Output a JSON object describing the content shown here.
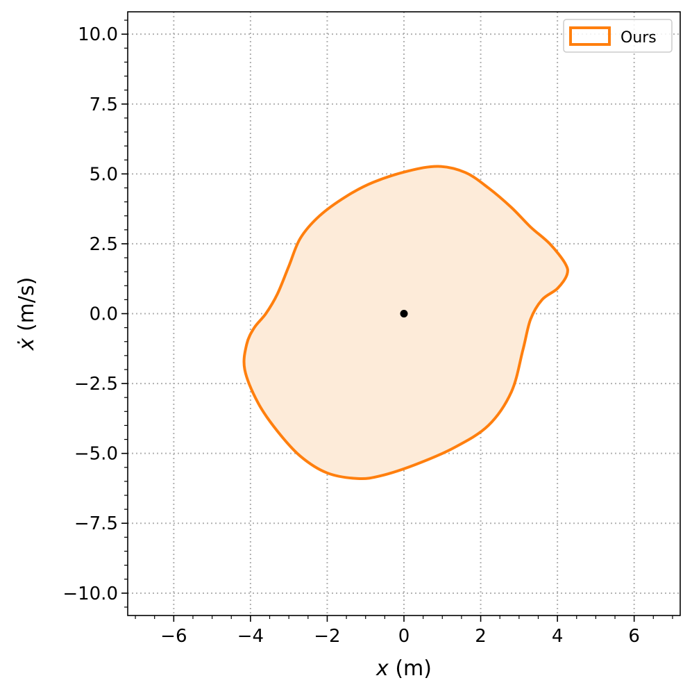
{
  "chart_data": {
    "type": "area",
    "title": "",
    "xlabel_var": "x",
    "xlabel_unit": " (m)",
    "ylabel_var": "ẋ",
    "ylabel_unit": " (m/s)",
    "xlim": [
      -7.2,
      7.2
    ],
    "ylim": [
      -10.8,
      10.8
    ],
    "x_ticks": [
      -6,
      -4,
      -2,
      0,
      2,
      4,
      6
    ],
    "y_ticks": [
      10.0,
      7.5,
      5.0,
      2.5,
      0.0,
      -2.5,
      -5.0,
      -7.5,
      -10.0
    ],
    "x_tick_labels": [
      "−6",
      "−4",
      "−2",
      "0",
      "2",
      "4",
      "6"
    ],
    "y_tick_labels": [
      "10.0",
      "7.5",
      "5.0",
      "2.5",
      "0.0",
      "−2.5",
      "−5.0",
      "−7.5",
      "−10.0"
    ],
    "grid": true,
    "legend_position": "top-right",
    "series": [
      {
        "name": "Ours",
        "color": "#ff7f0e",
        "fill_color": "#fdebd9",
        "closed": true,
        "points": [
          [
            0.9,
            5.27
          ],
          [
            1.6,
            5.05
          ],
          [
            2.2,
            4.5
          ],
          [
            2.8,
            3.8
          ],
          [
            3.3,
            3.1
          ],
          [
            3.8,
            2.5
          ],
          [
            4.2,
            1.8
          ],
          [
            4.25,
            1.4
          ],
          [
            4.0,
            0.9
          ],
          [
            3.6,
            0.5
          ],
          [
            3.3,
            -0.2
          ],
          [
            3.1,
            -1.3
          ],
          [
            2.8,
            -2.8
          ],
          [
            2.2,
            -4.0
          ],
          [
            1.3,
            -4.8
          ],
          [
            0.3,
            -5.4
          ],
          [
            -0.6,
            -5.8
          ],
          [
            -1.2,
            -5.9
          ],
          [
            -2.0,
            -5.7
          ],
          [
            -2.7,
            -5.1
          ],
          [
            -3.3,
            -4.2
          ],
          [
            -3.8,
            -3.2
          ],
          [
            -4.15,
            -2.0
          ],
          [
            -4.1,
            -1.1
          ],
          [
            -3.9,
            -0.5
          ],
          [
            -3.6,
            0.0
          ],
          [
            -3.3,
            0.7
          ],
          [
            -3.0,
            1.7
          ],
          [
            -2.7,
            2.7
          ],
          [
            -2.2,
            3.5
          ],
          [
            -1.5,
            4.2
          ],
          [
            -0.8,
            4.7
          ],
          [
            0.1,
            5.1
          ]
        ]
      },
      {
        "name": "",
        "type": "scatter",
        "color": "#000000",
        "points": [
          [
            0,
            0
          ]
        ]
      }
    ]
  }
}
